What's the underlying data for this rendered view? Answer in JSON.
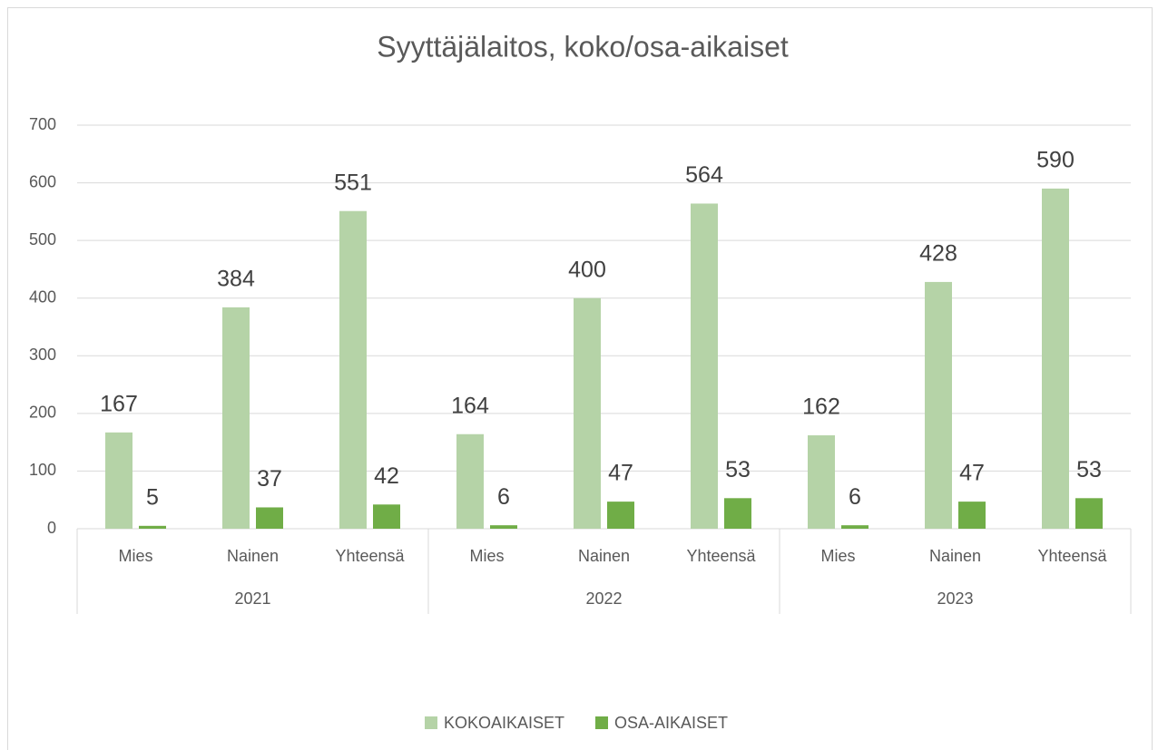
{
  "chart_data": {
    "type": "bar",
    "title": "Syyttäjälaitos, koko/osa-aikaiset",
    "categories": [
      "Mies",
      "Nainen",
      "Yhteensä",
      "Mies",
      "Nainen",
      "Yhteensä",
      "Mies",
      "Nainen",
      "Yhteensä"
    ],
    "groups": [
      "2021",
      "2022",
      "2023"
    ],
    "series": [
      {
        "name": "KOKOAIKAISET",
        "color": "#b5d3a7",
        "values": [
          167,
          384,
          551,
          164,
          400,
          564,
          162,
          428,
          590
        ]
      },
      {
        "name": "OSA-AIKAISET",
        "color": "#70ad47",
        "values": [
          5,
          37,
          42,
          6,
          47,
          53,
          6,
          47,
          53
        ]
      }
    ],
    "ylim": [
      0,
      700
    ],
    "yticks": [
      0,
      100,
      200,
      300,
      400,
      500,
      600,
      700
    ],
    "grid": true,
    "legend": "bottom"
  }
}
